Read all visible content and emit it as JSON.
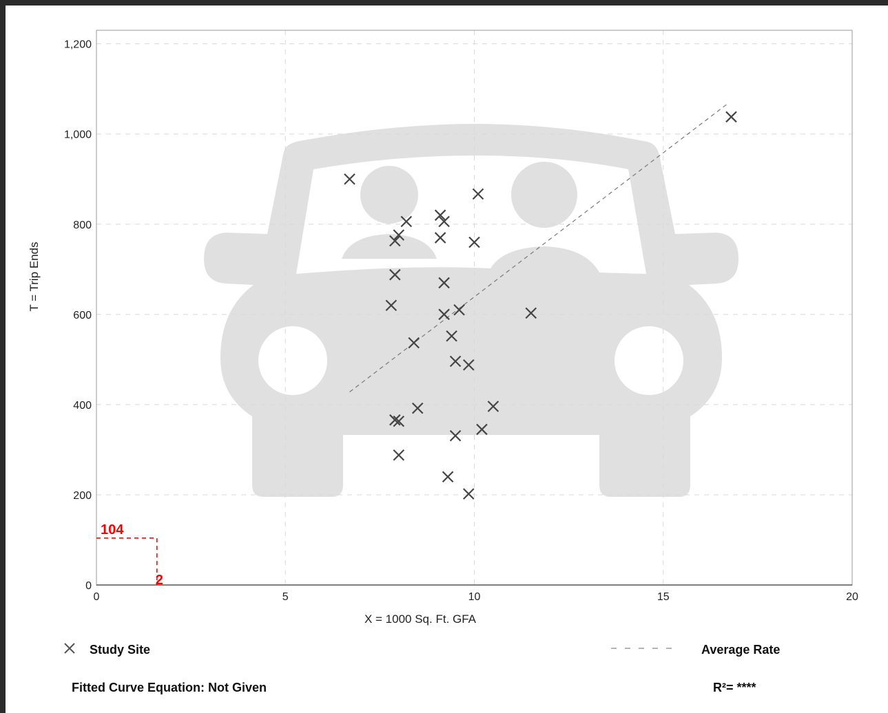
{
  "chart_data": {
    "type": "scatter",
    "xlabel": "X = 1000 Sq. Ft. GFA",
    "ylabel": "T = Trip Ends",
    "xlim": [
      0,
      20
    ],
    "ylim": [
      0,
      1230
    ],
    "x_ticks": [
      0,
      5,
      10,
      15,
      20
    ],
    "x_tick_labels": [
      "0",
      "5",
      "10",
      "15",
      "20"
    ],
    "y_ticks": [
      0,
      200,
      400,
      600,
      800,
      1000,
      1200
    ],
    "y_tick_labels": [
      "0",
      "200",
      "400",
      "600",
      "800",
      "1,000",
      "1,200"
    ],
    "grid": true,
    "series": [
      {
        "name": "Study Site",
        "marker": "x",
        "color": "#444444",
        "points": [
          {
            "x": 6.7,
            "y": 900
          },
          {
            "x": 10.1,
            "y": 867
          },
          {
            "x": 9.1,
            "y": 820
          },
          {
            "x": 9.2,
            "y": 806
          },
          {
            "x": 8.2,
            "y": 806
          },
          {
            "x": 8.0,
            "y": 776
          },
          {
            "x": 7.9,
            "y": 763
          },
          {
            "x": 9.1,
            "y": 770
          },
          {
            "x": 10.0,
            "y": 760
          },
          {
            "x": 7.9,
            "y": 688
          },
          {
            "x": 9.2,
            "y": 670
          },
          {
            "x": 7.8,
            "y": 620
          },
          {
            "x": 9.6,
            "y": 610
          },
          {
            "x": 9.2,
            "y": 600
          },
          {
            "x": 11.5,
            "y": 603
          },
          {
            "x": 9.4,
            "y": 552
          },
          {
            "x": 8.4,
            "y": 537
          },
          {
            "x": 9.5,
            "y": 496
          },
          {
            "x": 9.85,
            "y": 488
          },
          {
            "x": 8.5,
            "y": 392
          },
          {
            "x": 10.5,
            "y": 396
          },
          {
            "x": 7.9,
            "y": 366
          },
          {
            "x": 8.0,
            "y": 363
          },
          {
            "x": 10.2,
            "y": 345
          },
          {
            "x": 9.5,
            "y": 331
          },
          {
            "x": 8.0,
            "y": 288
          },
          {
            "x": 9.3,
            "y": 240
          },
          {
            "x": 9.85,
            "y": 202
          },
          {
            "x": 16.8,
            "y": 1038
          }
        ]
      },
      {
        "name": "Average Rate",
        "line_style": "dashed",
        "color": "#777777",
        "points": [
          {
            "x": 6.7,
            "y": 428
          },
          {
            "x": 16.7,
            "y": 1067
          }
        ]
      }
    ],
    "annotations": [
      {
        "text": "104",
        "x": 1.6,
        "y": 104,
        "color": "#ff0000"
      },
      {
        "text": "2",
        "x": 1.6,
        "y": 0,
        "color": "#ff0000"
      }
    ],
    "legend": {
      "study_site_label": "Study Site",
      "average_rate_label": "Average Rate"
    },
    "footer": {
      "fitted_curve": "Fitted Curve Equation: Not Given",
      "r_squared": "R²= ****"
    }
  }
}
